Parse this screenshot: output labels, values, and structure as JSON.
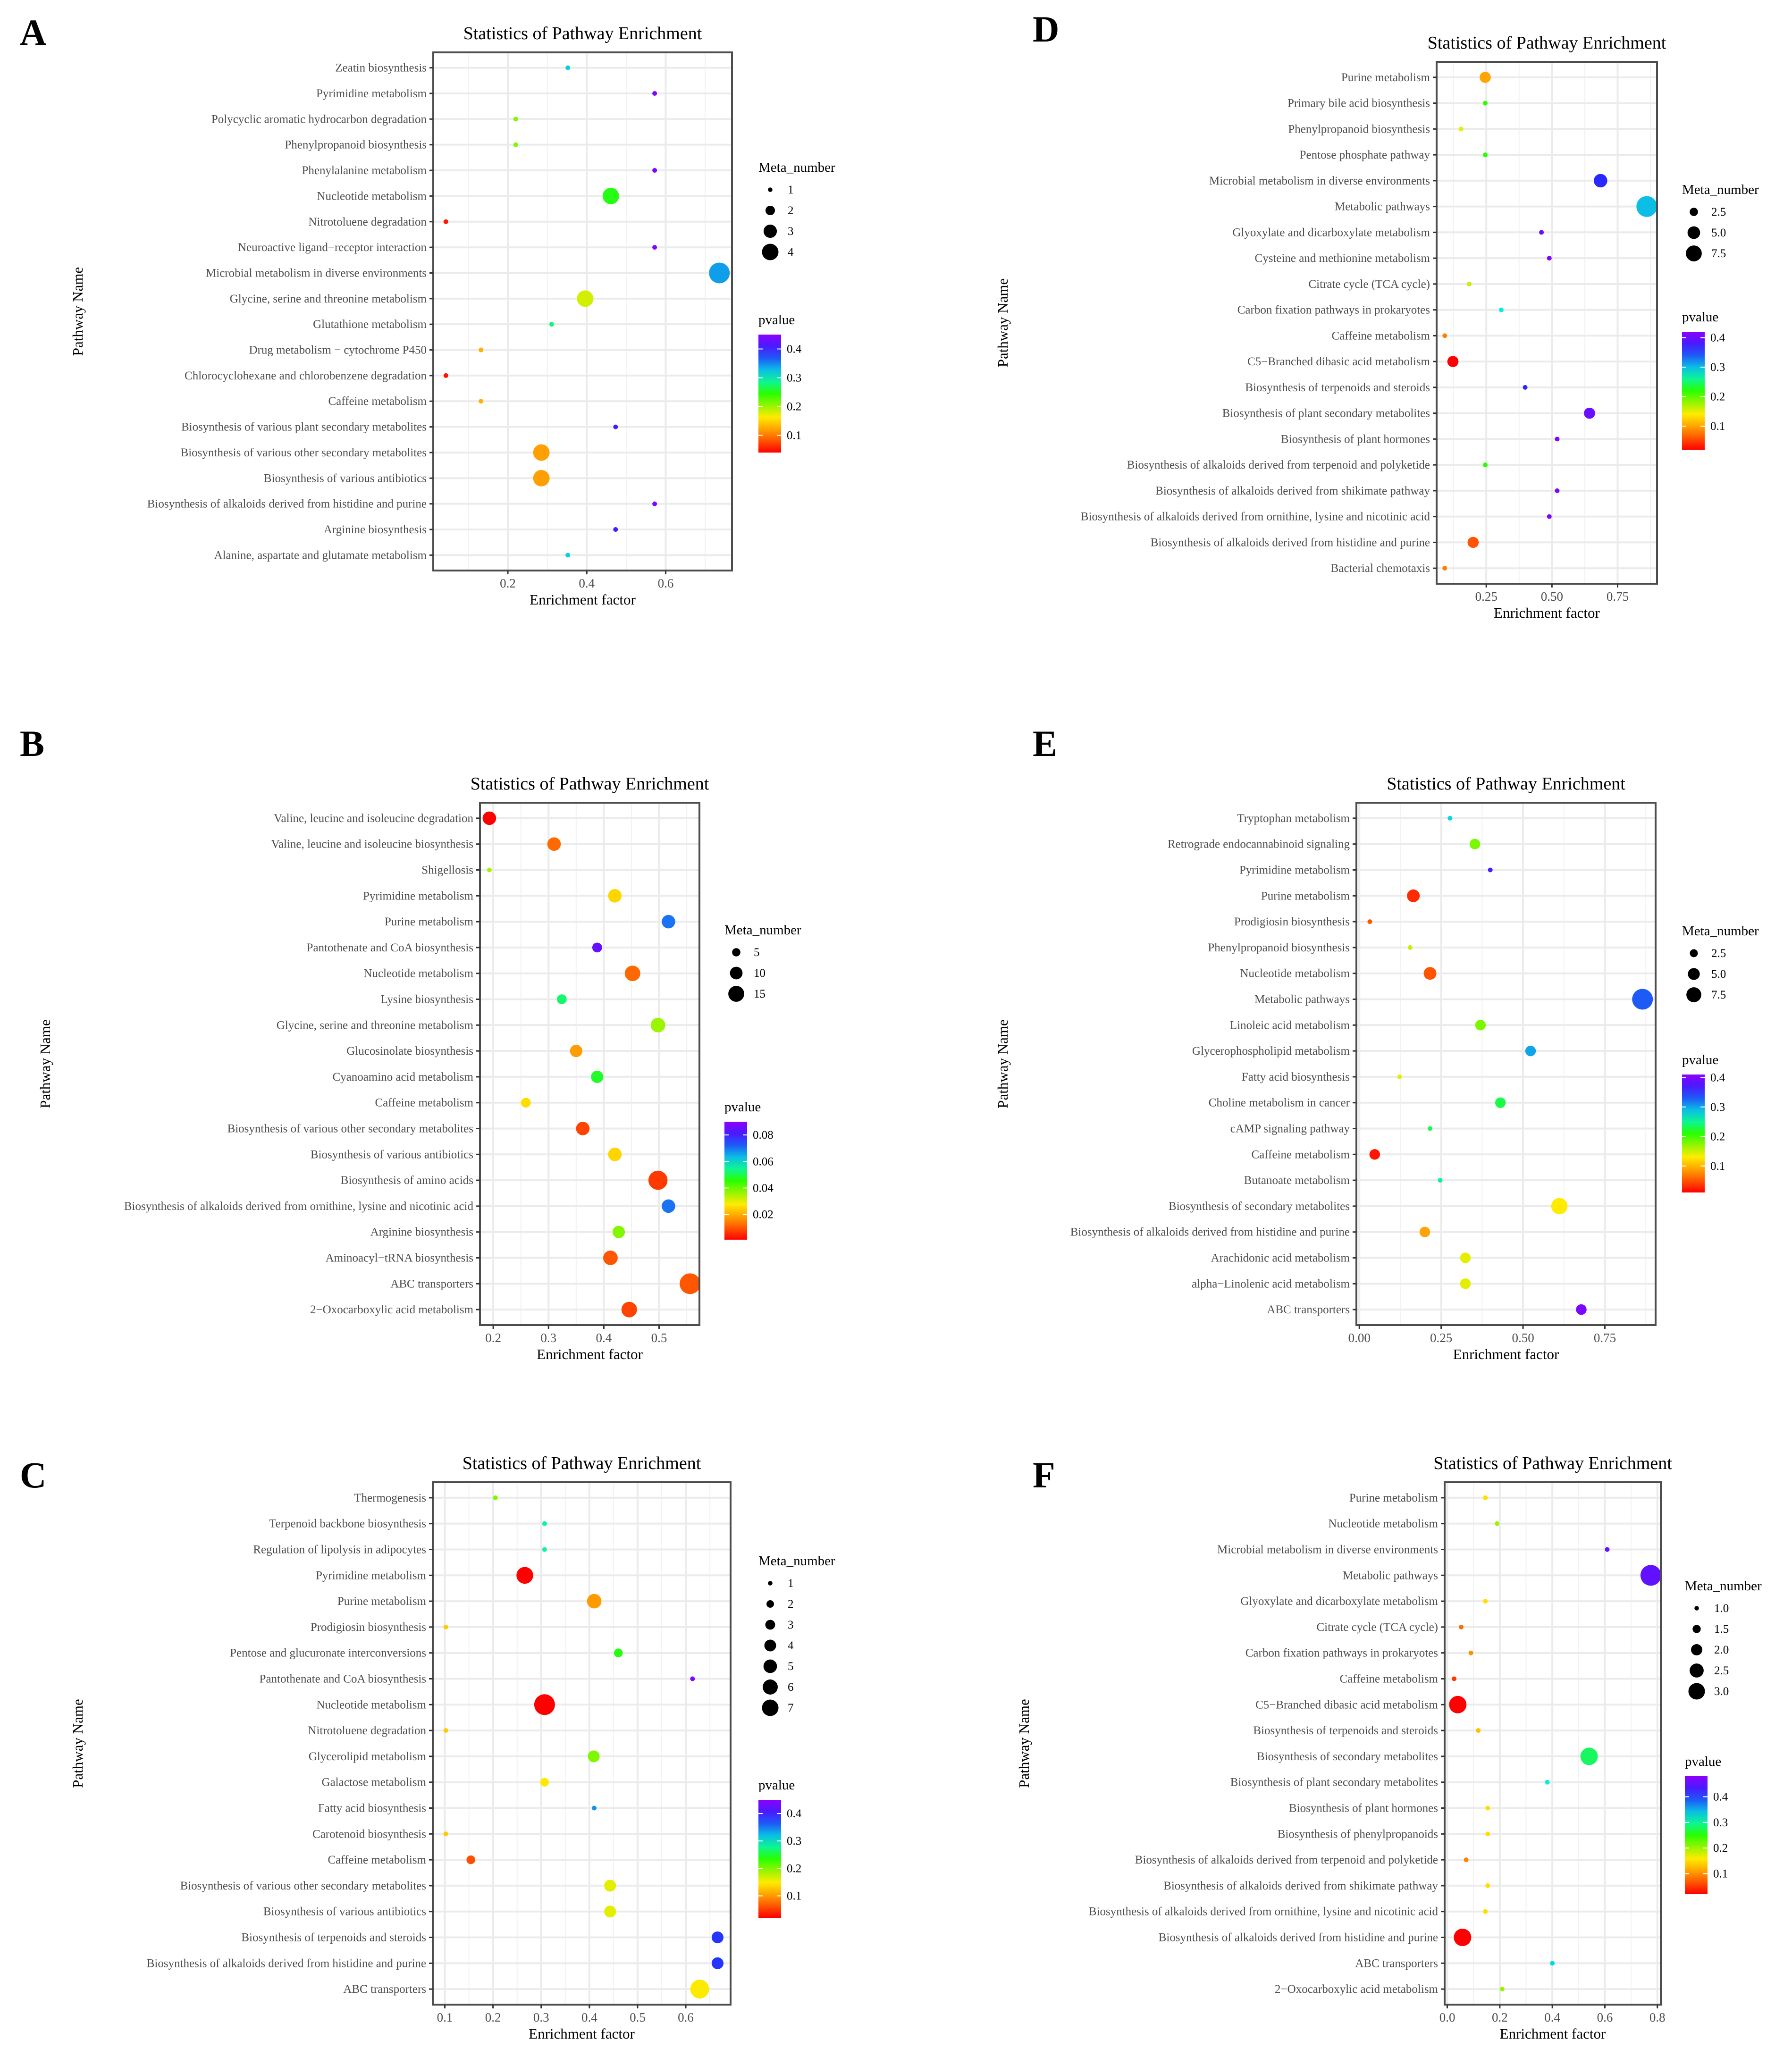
{
  "chart_data": [
    {
      "panel": "A",
      "type": "scatter",
      "title": "Statistics of Pathway Enrichment",
      "xlabel": "Enrichment factor",
      "ylabel": "Pathway Name",
      "xlim": [
        0.011,
        0.768
      ],
      "xticks": [
        0.2,
        0.4,
        0.6
      ],
      "xtick_labels": [
        "0.2",
        "0.4",
        "0.6"
      ],
      "size_legend": {
        "title": "Meta_number",
        "values": [
          1,
          2,
          3,
          4
        ],
        "labels": [
          "1",
          "2",
          "3",
          "4"
        ]
      },
      "color_legend": {
        "title": "pvalue",
        "range": [
          0.04,
          0.45
        ],
        "ticks": [
          0.1,
          0.2,
          0.3,
          0.4
        ],
        "labels": [
          "0.1",
          "0.2",
          "0.3",
          "0.4"
        ]
      },
      "legend_order": [
        "size",
        "color"
      ],
      "pathways": [
        "Zeatin biosynthesis",
        "Pyrimidine metabolism",
        "Polycyclic aromatic hydrocarbon degradation",
        "Phenylpropanoid biosynthesis",
        "Phenylalanine metabolism",
        "Nucleotide metabolism",
        "Nitrotoluene degradation",
        "Neuroactive ligand−receptor interaction",
        "Microbial metabolism in diverse environments",
        "Glycine, serine and threonine metabolism",
        "Glutathione metabolism",
        "Drug metabolism − cytochrome P450",
        "Chlorocyclohexane and chlorobenzene degradation",
        "Caffeine metabolism",
        "Biosynthesis of various plant secondary metabolites",
        "Biosynthesis of various other secondary metabolites",
        "Biosynthesis of various antibiotics",
        "Biosynthesis of alkaloids derived from histidine and purine",
        "Arginine biosynthesis",
        "Alanine, aspartate and glutamate metabolism"
      ],
      "enrichment_factor": [
        0.352,
        0.572,
        0.22,
        0.22,
        0.572,
        0.461,
        0.043,
        0.572,
        0.736,
        0.396,
        0.311,
        0.132,
        0.043,
        0.132,
        0.473,
        0.285,
        0.285,
        0.572,
        0.473,
        0.352
      ],
      "pvalue": [
        0.32,
        0.44,
        0.21,
        0.21,
        0.44,
        0.25,
        0.05,
        0.44,
        0.34,
        0.18,
        0.28,
        0.13,
        0.05,
        0.13,
        0.4,
        0.12,
        0.12,
        0.44,
        0.4,
        0.32
      ],
      "meta_number": [
        1,
        1,
        1,
        1,
        1,
        3,
        1,
        1,
        4,
        3,
        1,
        1,
        1,
        1,
        1,
        3,
        3,
        1,
        1,
        1
      ]
    },
    {
      "panel": "B",
      "type": "scatter",
      "title": "Statistics of Pathway Enrichment",
      "xlabel": "Enrichment factor",
      "ylabel": "Pathway Name",
      "xlim": [
        0.176,
        0.573
      ],
      "xticks": [
        0.2,
        0.3,
        0.4,
        0.5
      ],
      "xtick_labels": [
        "0.2",
        "0.3",
        "0.4",
        "0.5"
      ],
      "size_legend": {
        "title": "Meta_number",
        "values": [
          5,
          10,
          15
        ],
        "labels": [
          "5",
          "10",
          "15"
        ]
      },
      "color_legend": {
        "title": "pvalue",
        "range": [
          0.001,
          0.09
        ],
        "ticks": [
          0.02,
          0.04,
          0.06,
          0.08
        ],
        "labels": [
          "0.02",
          "0.04",
          "0.06",
          "0.08"
        ]
      },
      "legend_order": [
        "color",
        "size"
      ],
      "pathways": [
        "Valine, leucine and isoleucine degradation",
        "Valine, leucine and isoleucine biosynthesis",
        "Shigellosis",
        "Pyrimidine metabolism",
        "Purine metabolism",
        "Pantothenate and CoA biosynthesis",
        "Nucleotide metabolism",
        "Lysine biosynthesis",
        "Glycine, serine and threonine metabolism",
        "Glucosinolate biosynthesis",
        "Cyanoamino acid metabolism",
        "Caffeine metabolism",
        "Biosynthesis of various other secondary metabolites",
        "Biosynthesis of various antibiotics",
        "Biosynthesis of amino acids",
        "Biosynthesis of alkaloids derived from ornithine, lysine and nicotinic acid",
        "Arginine biosynthesis",
        "Aminoacyl−tRNA biosynthesis",
        "ABC transporters",
        "2−Oxocarboxylic acid metabolism"
      ],
      "enrichment_factor": [
        0.193,
        0.31,
        0.193,
        0.42,
        0.517,
        0.388,
        0.452,
        0.324,
        0.498,
        0.35,
        0.388,
        0.259,
        0.362,
        0.42,
        0.498,
        0.517,
        0.427,
        0.412,
        0.556,
        0.446
      ],
      "pvalue": [
        0.001,
        0.012,
        0.035,
        0.025,
        0.07,
        0.085,
        0.012,
        0.052,
        0.036,
        0.018,
        0.048,
        0.026,
        0.008,
        0.025,
        0.007,
        0.07,
        0.038,
        0.01,
        0.01,
        0.008
      ],
      "meta_number": [
        8,
        8,
        2,
        8,
        8,
        5,
        10,
        5,
        9,
        7,
        7,
        5,
        8,
        8,
        14,
        8,
        7,
        9,
        16,
        10
      ]
    },
    {
      "panel": "C",
      "type": "scatter",
      "title": "Statistics of Pathway Enrichment",
      "xlabel": "Enrichment factor",
      "ylabel": "Pathway Name",
      "xlim": [
        0.075,
        0.693
      ],
      "xticks": [
        0.1,
        0.2,
        0.3,
        0.4,
        0.5,
        0.6
      ],
      "xtick_labels": [
        "0.1",
        "0.2",
        "0.3",
        "0.4",
        "0.5",
        "0.6"
      ],
      "size_legend": {
        "title": "Meta_number",
        "values": [
          1,
          2,
          3,
          4,
          5,
          6,
          7
        ],
        "labels": [
          "1",
          "2",
          "3",
          "4",
          "5",
          "6",
          "7"
        ]
      },
      "color_legend": {
        "title": "pvalue",
        "range": [
          0.02,
          0.45
        ],
        "ticks": [
          0.1,
          0.2,
          0.3,
          0.4
        ],
        "labels": [
          "0.1",
          "0.2",
          "0.3",
          "0.4"
        ]
      },
      "legend_order": [
        "size",
        "color"
      ],
      "pathways": [
        "Thermogenesis",
        "Terpenoid backbone biosynthesis",
        "Regulation of lipolysis in adipocytes",
        "Pyrimidine metabolism",
        "Purine metabolism",
        "Prodigiosin biosynthesis",
        "Pentose and glucuronate interconversions",
        "Pantothenate and CoA biosynthesis",
        "Nucleotide metabolism",
        "Nitrotoluene degradation",
        "Glycerolipid metabolism",
        "Galactose metabolism",
        "Fatty acid biosynthesis",
        "Carotenoid biosynthesis",
        "Caffeine metabolism",
        "Biosynthesis of various other secondary metabolites",
        "Biosynthesis of various antibiotics",
        "Biosynthesis of terpenoids and steroids",
        "Biosynthesis of alkaloids derived from histidine and purine",
        "ABC transporters"
      ],
      "enrichment_factor": [
        0.205,
        0.307,
        0.307,
        0.266,
        0.41,
        0.102,
        0.46,
        0.614,
        0.307,
        0.102,
        0.409,
        0.307,
        0.41,
        0.102,
        0.154,
        0.443,
        0.443,
        0.666,
        0.666,
        0.629
      ],
      "pvalue": [
        0.2,
        0.28,
        0.28,
        0.02,
        0.1,
        0.13,
        0.24,
        0.44,
        0.02,
        0.13,
        0.2,
        0.15,
        0.34,
        0.13,
        0.06,
        0.16,
        0.16,
        0.38,
        0.38,
        0.15
      ],
      "meta_number": [
        1,
        1,
        1,
        5,
        4,
        1,
        2,
        1,
        7,
        1,
        3,
        2,
        1,
        1,
        2,
        3,
        3,
        3,
        3,
        6
      ]
    },
    {
      "panel": "D",
      "type": "scatter",
      "title": "Statistics of Pathway Enrichment",
      "xlabel": "Enrichment factor",
      "ylabel": "Pathway Name",
      "xlim": [
        0.061,
        0.9
      ],
      "xticks": [
        0.25,
        0.5,
        0.75
      ],
      "xtick_labels": [
        "0.25",
        "0.50",
        "0.75"
      ],
      "size_legend": {
        "title": "Meta_number",
        "values": [
          2.5,
          5.0,
          7.5
        ],
        "labels": [
          "2.5",
          "5.0",
          "7.5"
        ]
      },
      "color_legend": {
        "title": "pvalue",
        "range": [
          0.02,
          0.42
        ],
        "ticks": [
          0.1,
          0.2,
          0.3,
          0.4
        ],
        "labels": [
          "0.1",
          "0.2",
          "0.3",
          "0.4"
        ]
      },
      "legend_order": [
        "size",
        "color"
      ],
      "pathways": [
        "Purine metabolism",
        "Primary bile acid biosynthesis",
        "Phenylpropanoid biosynthesis",
        "Pentose phosphate pathway",
        "Microbial metabolism in diverse environments",
        "Metabolic pathways",
        "Glyoxylate and dicarboxylate metabolism",
        "Cysteine and methionine metabolism",
        "Citrate cycle (TCA cycle)",
        "Carbon fixation pathways in prokaryotes",
        "Caffeine metabolism",
        "C5−Branched dibasic acid metabolism",
        "Biosynthesis of terpenoids and steroids",
        "Biosynthesis of plant secondary metabolites",
        "Biosynthesis of plant hormones",
        "Biosynthesis of alkaloids derived from terpenoid and polyketide",
        "Biosynthesis of alkaloids derived from shikimate pathway",
        "Biosynthesis of alkaloids derived from ornithine, lysine and nicotinic acid",
        "Biosynthesis of alkaloids derived from histidine and purine",
        "Bacterial chemotaxis"
      ],
      "enrichment_factor": [
        0.246,
        0.246,
        0.154,
        0.246,
        0.685,
        0.861,
        0.46,
        0.49,
        0.185,
        0.307,
        0.092,
        0.123,
        0.398,
        0.643,
        0.52,
        0.246,
        0.52,
        0.49,
        0.2,
        0.092
      ],
      "pvalue": [
        0.1,
        0.22,
        0.15,
        0.22,
        0.36,
        0.3,
        0.4,
        0.41,
        0.16,
        0.28,
        0.08,
        0.02,
        0.36,
        0.4,
        0.41,
        0.22,
        0.41,
        0.41,
        0.06,
        0.08
      ],
      "meta_number": [
        3,
        1,
        1,
        1,
        4,
        8,
        1,
        1,
        1,
        1,
        1,
        3,
        1,
        3,
        1,
        1,
        1,
        1,
        3,
        1
      ]
    },
    {
      "panel": "E",
      "type": "scatter",
      "title": "Statistics of Pathway Enrichment",
      "xlabel": "Enrichment factor",
      "ylabel": "Pathway Name",
      "xlim": [
        -0.009,
        0.905
      ],
      "xticks": [
        0.0,
        0.25,
        0.5,
        0.75
      ],
      "xtick_labels": [
        "0.00",
        "0.25",
        "0.50",
        "0.75"
      ],
      "size_legend": {
        "title": "Meta_number",
        "values": [
          2.5,
          5.0,
          7.5
        ],
        "labels": [
          "2.5",
          "5.0",
          "7.5"
        ]
      },
      "color_legend": {
        "title": "pvalue",
        "range": [
          0.01,
          0.41
        ],
        "ticks": [
          0.1,
          0.2,
          0.3,
          0.4
        ],
        "labels": [
          "0.1",
          "0.2",
          "0.3",
          "0.4"
        ]
      },
      "legend_order": [
        "size",
        "color"
      ],
      "pathways": [
        "Tryptophan metabolism",
        "Retrograde endocannabinoid signaling",
        "Pyrimidine metabolism",
        "Purine metabolism",
        "Prodigiosin biosynthesis",
        "Phenylpropanoid biosynthesis",
        "Nucleotide metabolism",
        "Metabolic pathways",
        "Linoleic acid metabolism",
        "Glycerophospholipid metabolism",
        "Fatty acid biosynthesis",
        "Choline metabolism in cancer",
        "cAMP signaling pathway",
        "Caffeine metabolism",
        "Butanoate metabolism",
        "Biosynthesis of secondary metabolites",
        "Biosynthesis of alkaloids derived from histidine and purine",
        "Arachidonic acid metabolism",
        "alpha−Linolenic acid metabolism",
        "ABC transporters"
      ],
      "enrichment_factor": [
        0.277,
        0.353,
        0.4,
        0.165,
        0.032,
        0.155,
        0.216,
        0.865,
        0.37,
        0.523,
        0.123,
        0.431,
        0.216,
        0.047,
        0.247,
        0.611,
        0.2,
        0.324,
        0.324,
        0.678
      ],
      "pvalue": [
        0.28,
        0.18,
        0.37,
        0.03,
        0.05,
        0.15,
        0.05,
        0.33,
        0.18,
        0.3,
        0.14,
        0.23,
        0.23,
        0.02,
        0.25,
        0.13,
        0.09,
        0.14,
        0.14,
        0.4
      ],
      "meta_number": [
        1,
        3,
        1,
        4,
        1,
        1,
        4,
        9,
        3,
        3,
        1,
        3,
        1,
        3,
        1,
        6,
        3,
        3,
        3,
        3
      ]
    },
    {
      "panel": "F",
      "type": "scatter",
      "title": "Statistics of Pathway Enrichment",
      "xlabel": "Enrichment factor",
      "ylabel": "Pathway Name",
      "xlim": [
        -0.01,
        0.813
      ],
      "xticks": [
        0.0,
        0.2,
        0.4,
        0.6,
        0.8
      ],
      "xtick_labels": [
        "0.0",
        "0.2",
        "0.4",
        "0.6",
        "0.8"
      ],
      "size_legend": {
        "title": "Meta_number",
        "values": [
          1.0,
          1.5,
          2.0,
          2.5,
          3.0
        ],
        "labels": [
          "1.0",
          "1.5",
          "2.0",
          "2.5",
          "3.0"
        ]
      },
      "color_legend": {
        "title": "pvalue",
        "range": [
          0.02,
          0.48
        ],
        "ticks": [
          0.1,
          0.2,
          0.3,
          0.4
        ],
        "labels": [
          "0.1",
          "0.2",
          "0.3",
          "0.4"
        ]
      },
      "legend_order": [
        "color",
        "size"
      ],
      "pathways": [
        "Purine metabolism",
        "Nucleotide metabolism",
        "Microbial metabolism in diverse environments",
        "Metabolic pathways",
        "Glyoxylate and dicarboxylate metabolism",
        "Citrate cycle (TCA cycle)",
        "Carbon fixation pathways in prokaryotes",
        "Caffeine metabolism",
        "C5−Branched dibasic acid metabolism",
        "Biosynthesis of terpenoids and steroids",
        "Biosynthesis of secondary metabolites",
        "Biosynthesis of plant secondary metabolites",
        "Biosynthesis of plant hormones",
        "Biosynthesis of phenylpropanoids",
        "Biosynthesis of alkaloids derived from terpenoid and polyketide",
        "Biosynthesis of alkaloids derived from shikimate pathway",
        "Biosynthesis of alkaloids derived from ornithine, lysine and nicotinic acid",
        "Biosynthesis of alkaloids derived from histidine and purine",
        "ABC transporters",
        "2−Oxocarboxylic acid metabolism"
      ],
      "enrichment_factor": [
        0.145,
        0.19,
        0.609,
        0.775,
        0.145,
        0.053,
        0.09,
        0.026,
        0.04,
        0.118,
        0.54,
        0.381,
        0.154,
        0.154,
        0.072,
        0.154,
        0.145,
        0.058,
        0.4,
        0.209
      ],
      "pvalue": [
        0.15,
        0.2,
        0.45,
        0.45,
        0.15,
        0.08,
        0.1,
        0.05,
        0.02,
        0.13,
        0.28,
        0.32,
        0.15,
        0.15,
        0.09,
        0.15,
        0.15,
        0.02,
        0.33,
        0.2
      ],
      "meta_number": [
        1,
        1,
        1,
        3,
        1,
        1,
        1,
        1,
        2.5,
        1,
        2.5,
        1,
        1,
        1,
        1,
        1,
        1,
        2.5,
        1,
        1
      ]
    }
  ],
  "colors": {
    "low": "#ff0000",
    "mid": "#ffff00",
    "high": "#8000ff",
    "grid": "#ebebeb",
    "frame": "#4d4d4d"
  }
}
